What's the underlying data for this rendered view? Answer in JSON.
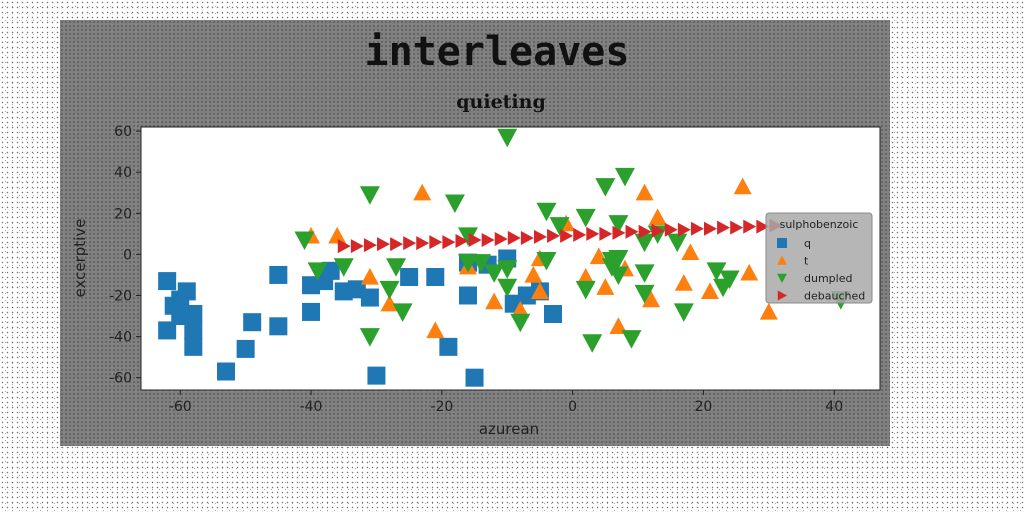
{
  "figure": {
    "suptitle": "interleaves"
  },
  "chart_data": {
    "type": "scatter",
    "title": "quieting",
    "xlabel": "azurean",
    "ylabel": "excerptive",
    "xlim": [
      -66,
      47
    ],
    "ylim": [
      -66,
      62
    ],
    "xticks": [
      -60,
      -40,
      -20,
      0,
      20,
      40
    ],
    "yticks": [
      -60,
      -40,
      -20,
      0,
      20,
      40,
      60
    ],
    "grid": false,
    "legend": {
      "title": "sulphobenzoic",
      "placement": "right"
    },
    "series": [
      {
        "name": "q",
        "marker": "square",
        "color": "#1f77b4",
        "points": [
          [
            -62,
            -13
          ],
          [
            -60,
            -22
          ],
          [
            -61,
            -25
          ],
          [
            -59,
            -18
          ],
          [
            -58,
            -29
          ],
          [
            -60,
            -30
          ],
          [
            -62,
            -37
          ],
          [
            -58,
            -37
          ],
          [
            -58,
            -45
          ],
          [
            -53,
            -57
          ],
          [
            -50,
            -46
          ],
          [
            -49,
            -33
          ],
          [
            -45,
            -35
          ],
          [
            -45,
            -10
          ],
          [
            -40,
            -28
          ],
          [
            -40,
            -15
          ],
          [
            -38,
            -13
          ],
          [
            -37,
            -8
          ],
          [
            -35,
            -18
          ],
          [
            -33,
            -17
          ],
          [
            -31,
            -21
          ],
          [
            -30,
            -59
          ],
          [
            -25,
            -11
          ],
          [
            -21,
            -11
          ],
          [
            -19,
            -45
          ],
          [
            -16,
            -20
          ],
          [
            -16,
            -4
          ],
          [
            -15,
            -60
          ],
          [
            -13,
            -5
          ],
          [
            -10,
            -2
          ],
          [
            -9,
            -24
          ],
          [
            -7,
            -20
          ],
          [
            -5,
            -18
          ],
          [
            -3,
            -29
          ]
        ]
      },
      {
        "name": "t",
        "marker": "triangle-up",
        "color": "#ff7f0e",
        "points": [
          [
            -40,
            9
          ],
          [
            -36,
            9
          ],
          [
            -31,
            -11
          ],
          [
            -28,
            -24
          ],
          [
            -23,
            30
          ],
          [
            -21,
            -37
          ],
          [
            -16,
            -6
          ],
          [
            -12,
            -23
          ],
          [
            -8,
            -27
          ],
          [
            -6,
            -10
          ],
          [
            -5,
            -18
          ],
          [
            -5,
            -2
          ],
          [
            -1,
            15
          ],
          [
            2,
            -11
          ],
          [
            4,
            -1
          ],
          [
            5,
            -16
          ],
          [
            7,
            -35
          ],
          [
            8,
            -7
          ],
          [
            11,
            30
          ],
          [
            12,
            -22
          ],
          [
            13,
            18
          ],
          [
            17,
            -14
          ],
          [
            18,
            1
          ],
          [
            21,
            -18
          ],
          [
            26,
            33
          ],
          [
            27,
            -9
          ],
          [
            30,
            -28
          ]
        ]
      },
      {
        "name": "dumpled",
        "marker": "triangle-down",
        "color": "#2ca02c",
        "points": [
          [
            -10,
            57
          ],
          [
            -41,
            7
          ],
          [
            -39,
            -8
          ],
          [
            -35,
            -6
          ],
          [
            -31,
            29
          ],
          [
            -31,
            -40
          ],
          [
            -28,
            -17
          ],
          [
            -27,
            -6
          ],
          [
            -26,
            -28
          ],
          [
            -18,
            25
          ],
          [
            -16,
            9
          ],
          [
            -16,
            -4
          ],
          [
            -14,
            -4
          ],
          [
            -12,
            -9
          ],
          [
            -10,
            -7
          ],
          [
            -10,
            -16
          ],
          [
            -8,
            -33
          ],
          [
            -4,
            -3
          ],
          [
            -4,
            21
          ],
          [
            -2,
            14
          ],
          [
            2,
            -17
          ],
          [
            2,
            18
          ],
          [
            3,
            -43
          ],
          [
            5,
            33
          ],
          [
            6,
            -3
          ],
          [
            6,
            -6
          ],
          [
            7,
            15
          ],
          [
            7,
            -10
          ],
          [
            7,
            -2
          ],
          [
            8,
            38
          ],
          [
            9,
            -41
          ],
          [
            11,
            6
          ],
          [
            11,
            -9
          ],
          [
            11,
            -19
          ],
          [
            13,
            10
          ],
          [
            16,
            6
          ],
          [
            17,
            -28
          ],
          [
            22,
            -8
          ],
          [
            23,
            -16
          ],
          [
            24,
            -12
          ],
          [
            41,
            -22
          ]
        ]
      },
      {
        "name": "debauched",
        "marker": "triangle-right",
        "color": "#d62728",
        "points": [
          [
            -35,
            4
          ],
          [
            -33,
            4
          ],
          [
            -31,
            4.5
          ],
          [
            -29,
            5
          ],
          [
            -27,
            5
          ],
          [
            -25,
            5.5
          ],
          [
            -23,
            5.5
          ],
          [
            -21,
            6
          ],
          [
            -19,
            6
          ],
          [
            -17,
            6.5
          ],
          [
            -15,
            7
          ],
          [
            -13,
            7
          ],
          [
            -11,
            7.5
          ],
          [
            -9,
            8
          ],
          [
            -7,
            8
          ],
          [
            -5,
            8.5
          ],
          [
            -3,
            9
          ],
          [
            -1,
            9
          ],
          [
            1,
            9.5
          ],
          [
            3,
            10
          ],
          [
            5,
            10
          ],
          [
            7,
            10.5
          ],
          [
            9,
            11
          ],
          [
            11,
            11
          ],
          [
            13,
            11.5
          ],
          [
            15,
            12
          ],
          [
            17,
            12
          ],
          [
            19,
            12.5
          ],
          [
            21,
            12.5
          ],
          [
            23,
            13
          ],
          [
            25,
            13
          ],
          [
            27,
            13.5
          ],
          [
            29,
            13.5
          ],
          [
            31,
            14
          ]
        ]
      }
    ]
  }
}
